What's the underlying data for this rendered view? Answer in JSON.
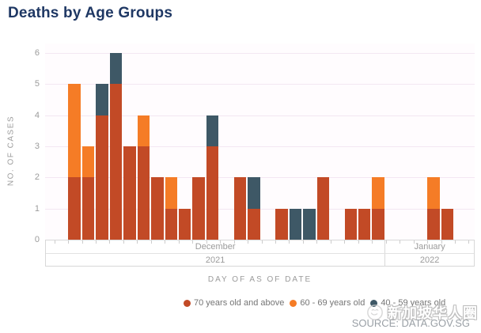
{
  "title": "Deaths by Age Groups",
  "y_axis": {
    "label": "NO. OF CASES",
    "ticks": [
      "0",
      "1",
      "2",
      "3",
      "4",
      "5",
      "6"
    ]
  },
  "x_axis": {
    "title": "DAY OF AS OF DATE",
    "groups": [
      {
        "month": "December",
        "year": "2021"
      },
      {
        "month": "January",
        "year": "2022"
      }
    ]
  },
  "legend": [
    {
      "label": "70 years old and above",
      "color": "#c24a26"
    },
    {
      "label": "60 - 69 years old",
      "color": "#f57c26"
    },
    {
      "label": "40 - 59 years old",
      "color": "#3e5866"
    }
  ],
  "watermark": {
    "text": "新加坡华人圈",
    "logo": "circle-sketch-logo"
  },
  "source": "SOURCE: DATA.GOV.SG",
  "chart_data": {
    "type": "bar",
    "stacked": true,
    "title": "Deaths by Age Groups",
    "xlabel": "DAY OF AS OF DATE",
    "ylabel": "NO. OF CASES",
    "ylim": [
      0,
      6
    ],
    "grid": "horizontal",
    "legend_position": "bottom",
    "x_unit": "day (unlabeled daily slots)",
    "month_groups": [
      {
        "label": "December 2021",
        "days": 23
      },
      {
        "label": "January 2022",
        "days": 5
      }
    ],
    "series": [
      {
        "name": "70 years old and above",
        "color": "#c24a26",
        "values": [
          2,
          2,
          4,
          5,
          3,
          3,
          2,
          1,
          1,
          2,
          3,
          0,
          2,
          1,
          0,
          1,
          0,
          0,
          2,
          0,
          1,
          1,
          1,
          0,
          0,
          0,
          1,
          1
        ]
      },
      {
        "name": "60 - 69 years old",
        "color": "#f57c26",
        "values": [
          3,
          1,
          0,
          0,
          0,
          1,
          0,
          1,
          0,
          0,
          0,
          0,
          0,
          0,
          0,
          0,
          0,
          0,
          0,
          0,
          0,
          0,
          1,
          0,
          0,
          0,
          1,
          0
        ]
      },
      {
        "name": "40 - 59 years old",
        "color": "#3e5866",
        "values": [
          0,
          0,
          1,
          1,
          0,
          0,
          0,
          0,
          0,
          0,
          1,
          0,
          0,
          1,
          0,
          0,
          1,
          1,
          0,
          0,
          0,
          0,
          0,
          0,
          0,
          0,
          0,
          0
        ]
      }
    ],
    "stack_order_bottom_to_top": [
      "70 years old and above",
      "60 - 69 years old",
      "40 - 59 years old"
    ],
    "totals_per_day": [
      5,
      3,
      5,
      6,
      3,
      4,
      2,
      2,
      1,
      2,
      4,
      0,
      2,
      2,
      0,
      1,
      1,
      1,
      2,
      0,
      1,
      1,
      2,
      0,
      0,
      0,
      2,
      1
    ]
  }
}
